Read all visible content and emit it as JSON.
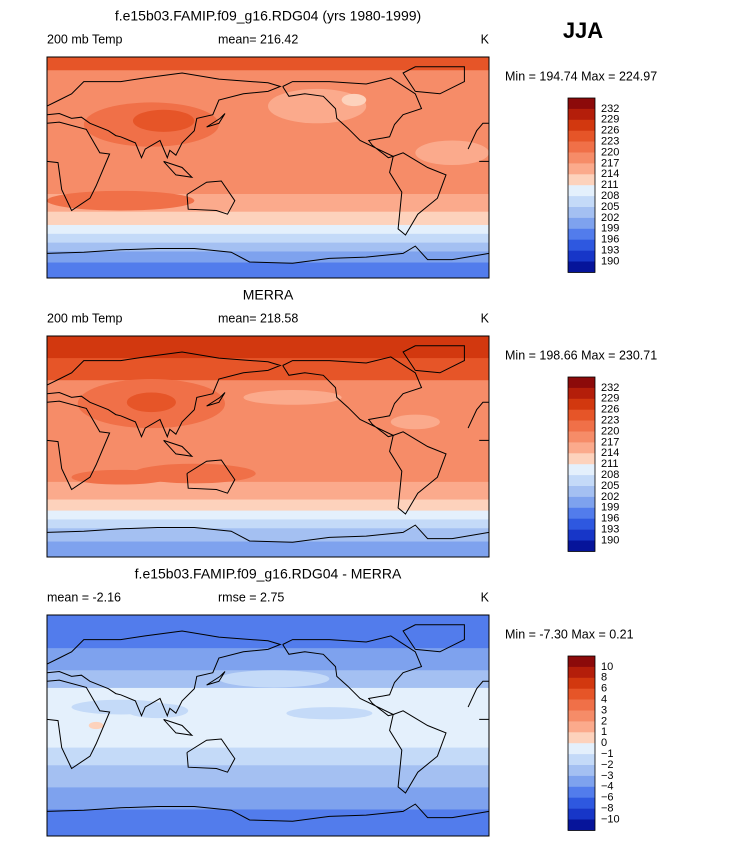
{
  "season": "JJA",
  "panels": [
    {
      "title": "f.e15b03.FAMIP.f09_g16.RDG04 (yrs 1980-1999)",
      "left_label": "200 mb Temp",
      "center_label": "mean= 216.42",
      "unit": "K",
      "range_label": "Min = 194.74 Max = 224.97",
      "colorbar": {
        "labels": [
          "232",
          "229",
          "226",
          "223",
          "220",
          "217",
          "214",
          "211",
          "208",
          "205",
          "202",
          "199",
          "196",
          "193",
          "190"
        ],
        "colors": [
          "#8c0a0a",
          "#b41e0a",
          "#d2380f",
          "#e65528",
          "#f07048",
          "#f68c68",
          "#fbaa8c",
          "#fdd2bc",
          "#e4f0fc",
          "#c4daf8",
          "#a4c0f2",
          "#7ea2ee",
          "#527cec",
          "#2e58e0",
          "#1736c8",
          "#06149a"
        ]
      }
    },
    {
      "title": "MERRA",
      "left_label": "200 mb Temp",
      "center_label": "mean= 218.58",
      "unit": "K",
      "range_label": "Min = 198.66 Max = 230.71",
      "colorbar": {
        "labels": [
          "232",
          "229",
          "226",
          "223",
          "220",
          "217",
          "214",
          "211",
          "208",
          "205",
          "202",
          "199",
          "196",
          "193",
          "190"
        ],
        "colors": [
          "#8c0a0a",
          "#b41e0a",
          "#d2380f",
          "#e65528",
          "#f07048",
          "#f68c68",
          "#fbaa8c",
          "#fdd2bc",
          "#e4f0fc",
          "#c4daf8",
          "#a4c0f2",
          "#7ea2ee",
          "#527cec",
          "#2e58e0",
          "#1736c8",
          "#06149a"
        ]
      }
    },
    {
      "title": "f.e15b03.FAMIP.f09_g16.RDG04 - MERRA",
      "left_label": "mean = -2.16",
      "center_label": "rmse = 2.75",
      "unit": "K",
      "range_label": "Min = -7.30 Max = 0.21",
      "colorbar": {
        "labels": [
          "10",
          "8",
          "6",
          "4",
          "3",
          "2",
          "1",
          "0",
          "−1",
          "−2",
          "−3",
          "−4",
          "−6",
          "−8",
          "−10"
        ],
        "colors": [
          "#8c0a0a",
          "#b41e0a",
          "#d2380f",
          "#e65528",
          "#f07048",
          "#f68c68",
          "#fbaa8c",
          "#fdd2bc",
          "#e4f0fc",
          "#c4daf8",
          "#a4c0f2",
          "#7ea2ee",
          "#527cec",
          "#2e58e0",
          "#1736c8",
          "#06149a"
        ]
      }
    }
  ]
}
